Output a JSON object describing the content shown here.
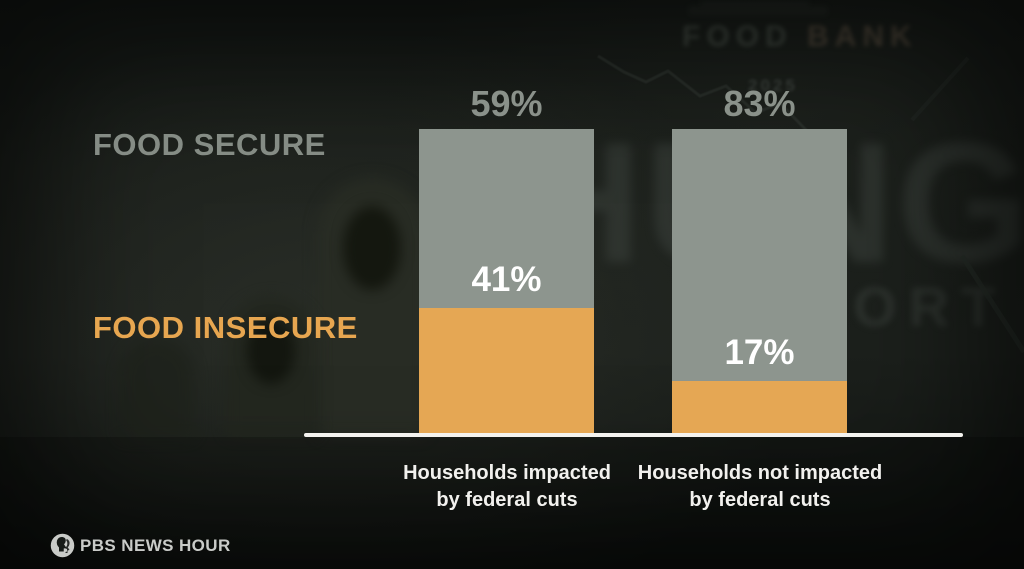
{
  "watermarks": {
    "food": "FOOD",
    "bank": "BANK",
    "hunger": "HUNGER",
    "report": "REPORT",
    "year": "2025"
  },
  "chart": {
    "row_labels": {
      "secure": "FOOD SECURE",
      "insecure": "FOOD INSECURE"
    },
    "bars": [
      {
        "top_label": "59%",
        "inner_label": "41%",
        "axis_line1": "Households impacted",
        "axis_line2": "by federal cuts"
      },
      {
        "top_label": "83%",
        "inner_label": "17%",
        "axis_line1": "Households not impacted",
        "axis_line2": "by federal cuts"
      }
    ]
  },
  "chart_data": {
    "type": "bar",
    "stacked": true,
    "orientation": "vertical",
    "categories": [
      "Households impacted by federal cuts",
      "Households not impacted by federal cuts"
    ],
    "series": [
      {
        "name": "FOOD SECURE",
        "values": [
          59,
          83
        ],
        "color": "#8d958e"
      },
      {
        "name": "FOOD INSECURE",
        "values": [
          41,
          17
        ],
        "color": "#e5a754"
      }
    ],
    "unit": "%",
    "ylim": [
      0,
      100
    ],
    "title": "",
    "xlabel": "",
    "ylabel": "",
    "grid": false,
    "legend_position": "left",
    "value_labels": {
      "above_bars": [
        "59%",
        "83%"
      ],
      "inside_bars": [
        "41%",
        "17%"
      ]
    }
  },
  "footer": {
    "brand": "PBS NEWS HOUR"
  },
  "colors": {
    "secure_bar": "#8d958e",
    "insecure_bar": "#e5a754",
    "secure_label": "#858c85",
    "insecure_label": "#e7a650",
    "top_pct": "#8a918a",
    "inner_pct": "#ffffff",
    "baseline": "#f4f3ef",
    "background": "#1b1f1b"
  }
}
